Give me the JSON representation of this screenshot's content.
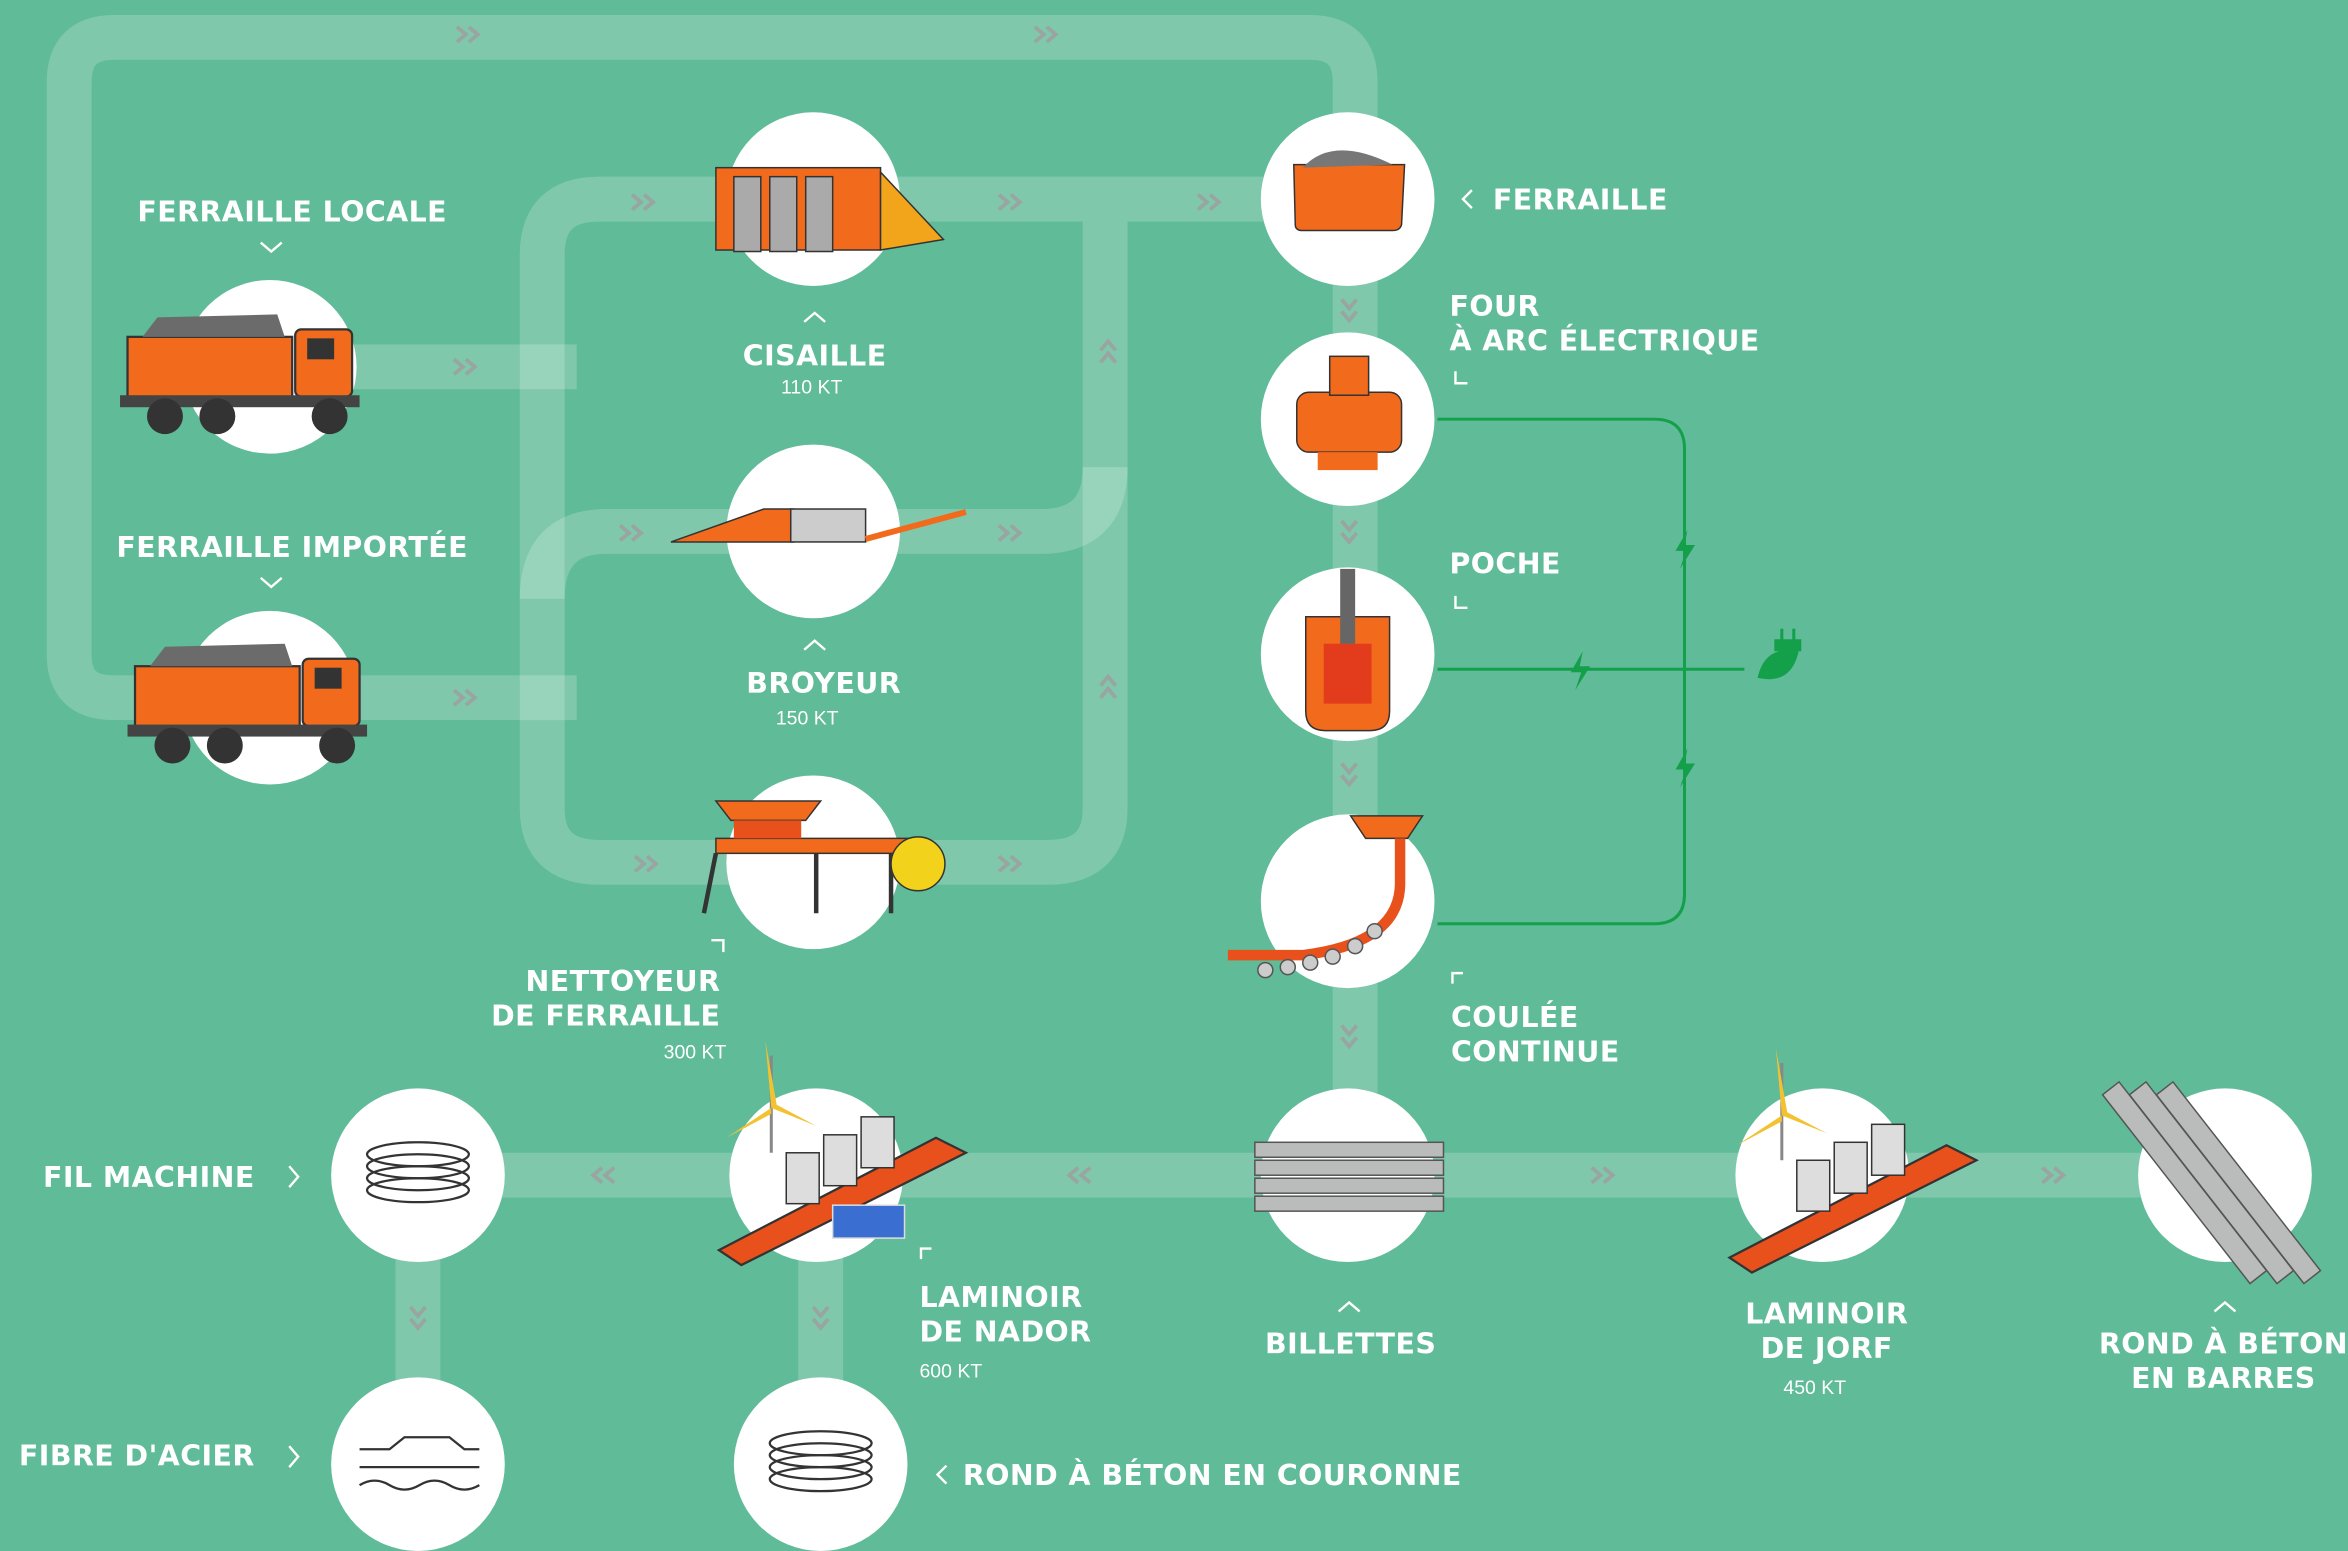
{
  "nodes": [
    {
      "label": [
        "FERRAILLE LOCALE"
      ]
    },
    {
      "label": [
        "FERRAILLE IMPORTÉE"
      ]
    },
    {
      "label": [
        "CISAILLE"
      ],
      "capacity": "110 KT"
    },
    {
      "label": [
        "BROYEUR"
      ],
      "capacity": "150 KT"
    },
    {
      "label": [
        "NETTOYEUR",
        "DE FERRAILLE"
      ],
      "capacity": "300 KT"
    },
    {
      "label": [
        "FERRAILLE"
      ]
    },
    {
      "label": [
        "FOUR",
        "À ARC ÉLECTRIQUE"
      ]
    },
    {
      "label": [
        "POCHE"
      ]
    },
    {
      "label": [
        "COULÉE",
        "CONTINUE"
      ]
    },
    {
      "label": [
        "BILLETTES"
      ]
    },
    {
      "label": [
        "LAMINOIR",
        "DE JORF"
      ],
      "capacity": "450 KT"
    },
    {
      "label": [
        "ROND À BÉTON",
        "EN BARRES"
      ]
    },
    {
      "label": [
        "LAMINOIR",
        "DE NADOR"
      ],
      "capacity": "600 KT"
    },
    {
      "label": [
        "FIL MACHINE"
      ]
    },
    {
      "label": [
        "FIBRE D'ACIER"
      ]
    },
    {
      "label": [
        "ROND À BÉTON EN COURONNE"
      ]
    }
  ]
}
